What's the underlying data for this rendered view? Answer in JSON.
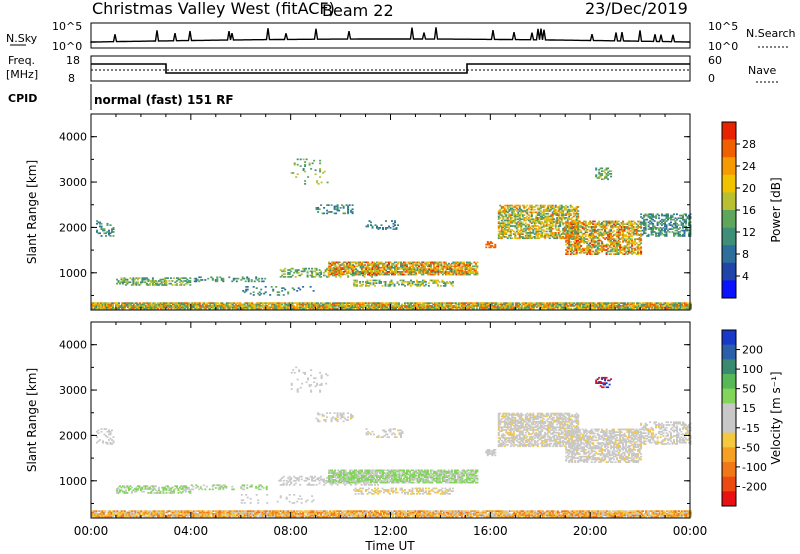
{
  "header": {
    "title": "Christmas Valley West (fitACF)",
    "beam": "Beam 22",
    "date": "23/Dec/2019"
  },
  "top_panels": {
    "nsky_label": "N.Sky",
    "nsky_ticks": [
      "10^5",
      "10^0"
    ],
    "nsearch_label": "N.Search",
    "nsearch_ticks": [
      "10^5",
      "10^0"
    ],
    "freq_label_1": "Freq.",
    "freq_label_2": "[MHz]",
    "freq_ticks": [
      "18",
      "8"
    ],
    "nave_label": "Nave",
    "nave_ticks": [
      "60",
      "0"
    ],
    "cpid_label": "CPID",
    "cpid_text": "normal (fast) 151 RF"
  },
  "chart_data": [
    {
      "type": "heatmap",
      "name": "power",
      "ylabel": "Slant Range [km]",
      "yticks": [
        "1000",
        "2000",
        "3000",
        "4000"
      ],
      "ylim": [
        180,
        4500
      ],
      "xlim": [
        0,
        24
      ],
      "xticks": [
        "00:00",
        "04:00",
        "08:00",
        "12:00",
        "16:00",
        "20:00",
        "00:00"
      ],
      "colorbar": {
        "label": "Power [dB]",
        "ticks": [
          "4",
          "8",
          "12",
          "16",
          "20",
          "24",
          "28"
        ],
        "colors": [
          "#0a12ff",
          "#1f45a8",
          "#2e6e9c",
          "#3f8f78",
          "#5da65c",
          "#b8c032",
          "#f0c200",
          "#f59a00",
          "#f06000",
          "#e82400"
        ]
      }
    },
    {
      "type": "heatmap",
      "name": "velocity",
      "ylabel": "Slant Range [km]",
      "yticks": [
        "1000",
        "2000",
        "3000",
        "4000"
      ],
      "ylim": [
        180,
        4500
      ],
      "xlim": [
        0,
        24
      ],
      "xticks": [
        "00:00",
        "04:00",
        "08:00",
        "12:00",
        "16:00",
        "20:00",
        "00:00"
      ],
      "xlabel": "Time UT",
      "colorbar": {
        "label": "Velocity [m s⁻¹]",
        "ticks": [
          "200",
          "100",
          "50",
          "15",
          "-15",
          "-50",
          "-100",
          "-200"
        ],
        "colors": [
          "#1838c8",
          "#2b5fa8",
          "#3a8a72",
          "#58b858",
          "#82d45a",
          "#c8c8c8",
          "#c8c8c8",
          "#f4c840",
          "#f4a020",
          "#f07818",
          "#ec4a10",
          "#e81010"
        ]
      }
    }
  ]
}
